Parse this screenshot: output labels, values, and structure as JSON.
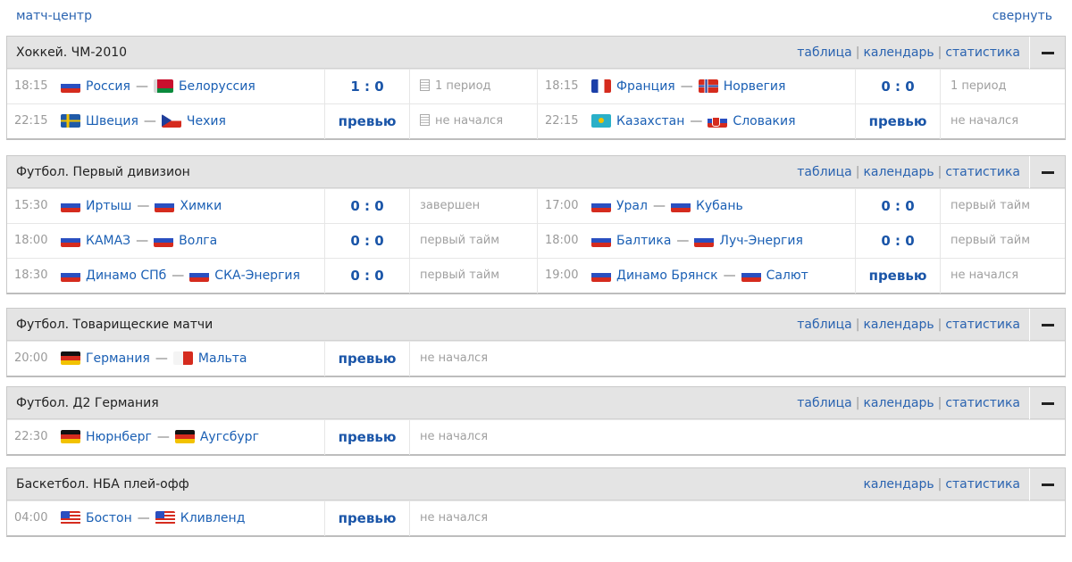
{
  "header": {
    "match_center": "матч-центр",
    "collapse": "свернуть"
  },
  "links": {
    "table": "таблица",
    "calendar": "календарь",
    "stats": "статистика"
  },
  "blocks": [
    {
      "title": "Хоккей. ЧМ-2010",
      "rows": [
        [
          {
            "time": "18:15",
            "home": "Россия",
            "home_flag": "ru",
            "away": "Белоруссия",
            "away_flag": "by",
            "score": "1 : 0",
            "status": "1 период",
            "doc": true
          },
          {
            "time": "18:15",
            "home": "Франция",
            "home_flag": "fr",
            "away": "Норвегия",
            "away_flag": "no",
            "score": "0 : 0",
            "status": "1 период",
            "doc": false
          }
        ],
        [
          {
            "time": "22:15",
            "home": "Швеция",
            "home_flag": "se",
            "away": "Чехия",
            "away_flag": "cz",
            "score": "превью",
            "status": "не начался",
            "doc": true
          },
          {
            "time": "22:15",
            "home": "Казахстан",
            "home_flag": "kz",
            "away": "Словакия",
            "away_flag": "sk",
            "score": "превью",
            "status": "не начался",
            "doc": false
          }
        ]
      ]
    },
    {
      "title": "Футбол. Первый дивизион",
      "rows": [
        [
          {
            "time": "15:30",
            "home": "Иртыш",
            "home_flag": "ru",
            "away": "Химки",
            "away_flag": "ru",
            "score": "0 : 0",
            "status": "завершен",
            "doc": false
          },
          {
            "time": "17:00",
            "home": "Урал",
            "home_flag": "ru",
            "away": "Кубань",
            "away_flag": "ru",
            "score": "0 : 0",
            "status": "первый тайм",
            "doc": false
          }
        ],
        [
          {
            "time": "18:00",
            "home": "КАМАЗ",
            "home_flag": "ru",
            "away": "Волга",
            "away_flag": "ru",
            "score": "0 : 0",
            "status": "первый тайм",
            "doc": false
          },
          {
            "time": "18:00",
            "home": "Балтика",
            "home_flag": "ru",
            "away": "Луч-Энергия",
            "away_flag": "ru",
            "score": "0 : 0",
            "status": "первый тайм",
            "doc": false
          }
        ],
        [
          {
            "time": "18:30",
            "home": "Динамо СПб",
            "home_flag": "ru",
            "away": "СКА-Энергия",
            "away_flag": "ru",
            "score": "0 : 0",
            "status": "первый тайм",
            "doc": false
          },
          {
            "time": "19:00",
            "home": "Динамо Брянск",
            "home_flag": "ru",
            "away": "Салют",
            "away_flag": "ru",
            "score": "превью",
            "status": "не начался",
            "doc": false
          }
        ]
      ]
    },
    {
      "title": "Футбол. Товарищеские матчи",
      "rows": [
        [
          {
            "time": "20:00",
            "home": "Германия",
            "home_flag": "de",
            "away": "Мальта",
            "away_flag": "mt",
            "score": "превью",
            "status": "не начался",
            "doc": false
          }
        ]
      ]
    },
    {
      "title": "Футбол. Д2 Германия",
      "rows": [
        [
          {
            "time": "22:30",
            "home": "Нюрнберг",
            "home_flag": "de",
            "away": "Аугсбург",
            "away_flag": "de",
            "score": "превью",
            "status": "не начался",
            "doc": false
          }
        ]
      ]
    },
    {
      "title": "Баскетбол. НБА плей-офф",
      "no_table": true,
      "rows": [
        [
          {
            "time": "04:00",
            "home": "Бостон",
            "home_flag": "us",
            "away": "Кливленд",
            "away_flag": "us",
            "score": "превью",
            "status": "не начался",
            "doc": false
          }
        ]
      ]
    }
  ]
}
